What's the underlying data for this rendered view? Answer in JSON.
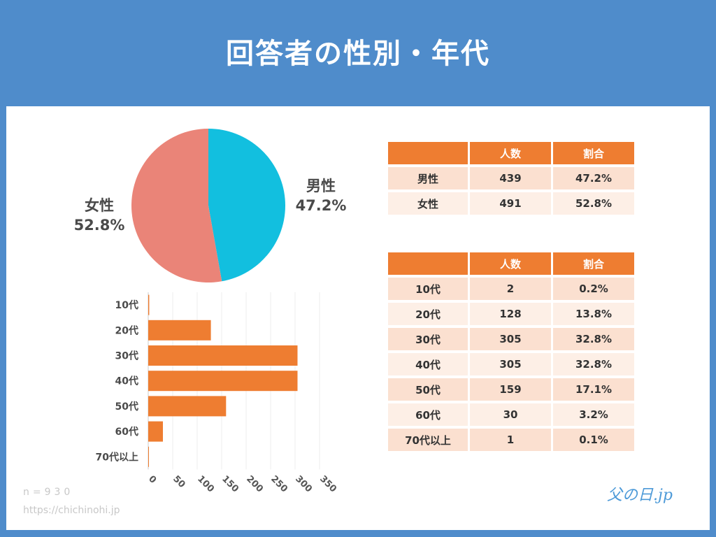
{
  "title": "回答者の性別・年代",
  "gender_table": {
    "headers": [
      "",
      "人数",
      "割合"
    ],
    "rows": [
      [
        "男性",
        "439",
        "47.2%"
      ],
      [
        "女性",
        "491",
        "52.8%"
      ]
    ]
  },
  "age_table": {
    "headers": [
      "",
      "人数",
      "割合"
    ],
    "rows": [
      [
        "10代",
        "2",
        "0.2%"
      ],
      [
        "20代",
        "128",
        "13.8%"
      ],
      [
        "30代",
        "305",
        "32.8%"
      ],
      [
        "40代",
        "305",
        "32.8%"
      ],
      [
        "50代",
        "159",
        "17.1%"
      ],
      [
        "60代",
        "30",
        "3.2%"
      ],
      [
        "70代以上",
        "1",
        "0.1%"
      ]
    ]
  },
  "footer": {
    "sample": "n=930",
    "url": "https://chichinohi.jp",
    "logo": "父の日.jp"
  },
  "colors": {
    "background": "#4f8ccb",
    "male": "#12bfdf",
    "female": "#ea8478",
    "bar": "#ee7d31"
  },
  "chart_data": [
    {
      "type": "pie",
      "labels": [
        "男性",
        "女性"
      ],
      "values": [
        47.2,
        52.8
      ],
      "slice_labels": [
        {
          "name": "男性",
          "value": "47.2%"
        },
        {
          "name": "女性",
          "value": "52.8%"
        }
      ],
      "colors": [
        "#12bfdf",
        "#ea8478"
      ]
    },
    {
      "type": "bar",
      "orientation": "horizontal",
      "categories": [
        "10代",
        "20代",
        "30代",
        "40代",
        "50代",
        "60代",
        "70代以上"
      ],
      "values": [
        2,
        128,
        305,
        305,
        159,
        30,
        1
      ],
      "xlim": [
        0,
        350
      ],
      "xticks": [
        "0",
        "50",
        "100",
        "150",
        "200",
        "250",
        "300",
        "350"
      ],
      "grid": true,
      "color": "#ee7d31"
    }
  ]
}
